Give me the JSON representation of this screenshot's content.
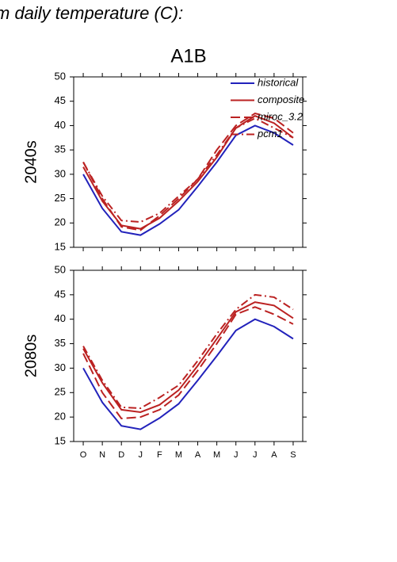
{
  "header": "m daily temperature (C):",
  "chart_data": [
    {
      "type": "line",
      "title": "A1B",
      "ylabel": "2040s",
      "legend": "upper right",
      "categories": [
        null,
        null,
        null,
        null,
        null,
        null,
        null,
        null,
        null,
        null,
        null,
        null
      ],
      "ylim": [
        15,
        50
      ],
      "yticks": [
        15,
        20,
        25,
        30,
        35,
        40,
        45,
        50
      ],
      "series": [
        {
          "name": "historical",
          "color": "#2222bb",
          "dash": "solid",
          "values": [
            30,
            23,
            18.2,
            17.5,
            19.8,
            22.7,
            27.5,
            32.5,
            38,
            40,
            38.5,
            36
          ]
        },
        {
          "name": "composite",
          "color": "#bb2222",
          "dash": "solid",
          "values": [
            31.5,
            24.5,
            19.5,
            18.8,
            21,
            24.5,
            28.5,
            33.5,
            39.5,
            42,
            40.5,
            37.5
          ]
        },
        {
          "name": "miroc_3.2",
          "color": "#bb2222",
          "dash": "dashed",
          "values": [
            32.5,
            25,
            19.2,
            18.5,
            21.5,
            25,
            29,
            35,
            40,
            42.5,
            41.5,
            38.5
          ]
        },
        {
          "name": "pcm1",
          "color": "#bb2222",
          "dash": "dashdot",
          "values": [
            32.5,
            25.5,
            20.5,
            20.2,
            22,
            25.5,
            29,
            34,
            39.5,
            41.5,
            39.5,
            37.5
          ]
        }
      ]
    },
    {
      "type": "line",
      "ylabel": "2080s",
      "categories": [
        "O",
        "N",
        "D",
        "J",
        "F",
        "M",
        "A",
        "M",
        "J",
        "J",
        "A",
        "S"
      ],
      "ylim": [
        15,
        50
      ],
      "yticks": [
        15,
        20,
        25,
        30,
        35,
        40,
        45,
        50
      ],
      "series": [
        {
          "color": "#2222bb",
          "dash": "solid",
          "values": [
            30,
            23,
            18.2,
            17.5,
            19.8,
            22.7,
            27.5,
            32.5,
            37.7,
            40,
            38.5,
            36
          ]
        },
        {
          "color": "#bb2222",
          "dash": "solid",
          "values": [
            34,
            27,
            21.5,
            21,
            22.5,
            25.5,
            30.5,
            36,
            41.5,
            43.5,
            42.8,
            40.2
          ]
        },
        {
          "color": "#bb2222",
          "dash": "dashed",
          "values": [
            33,
            25,
            19.7,
            20,
            21.5,
            24.5,
            29.5,
            35,
            41,
            42.5,
            41,
            39
          ]
        },
        {
          "color": "#bb2222",
          "dash": "dashdot",
          "values": [
            34.5,
            27.5,
            22,
            21.8,
            24,
            26.5,
            31.5,
            37,
            42,
            45,
            44.5,
            42
          ]
        }
      ]
    }
  ]
}
